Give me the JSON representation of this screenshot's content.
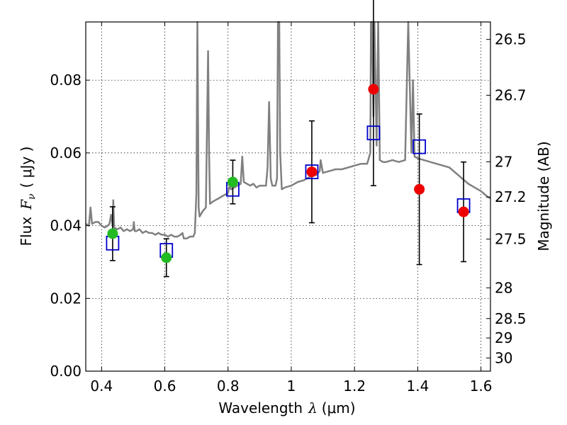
{
  "chart_data": {
    "type": "scatter",
    "xlabel": {
      "prefix": "Wavelength",
      "symbol": "λ",
      "unit": "(μm)"
    },
    "ylabel": {
      "prefix": "Flux",
      "symbol": "F",
      "subscript": "ν",
      "unit": "( μJy )"
    },
    "y2label": "Magnitude (AB)",
    "xlim": [
      0.35,
      1.63
    ],
    "ylim": [
      0.0,
      0.096
    ],
    "grid": true,
    "x_ticks": [
      0.4,
      0.6,
      0.8,
      1.0,
      1.2,
      1.4,
      1.6
    ],
    "x_tick_labels": [
      "0.4",
      "0.6",
      "0.8",
      "1",
      "1.2",
      "1.4",
      "1.6"
    ],
    "y_ticks": [
      0.0,
      0.02,
      0.04,
      0.06,
      0.08
    ],
    "y_tick_labels": [
      "0.00",
      "0.02",
      "0.04",
      "0.06",
      "0.08"
    ],
    "mag_ticks": [
      26.5,
      26.7,
      27,
      27.2,
      27.5,
      28,
      28.5,
      29,
      30
    ],
    "mag_tick_labels": [
      "26.5",
      "26.7",
      "27",
      "27.2",
      "27.5",
      "28",
      "28.5",
      "29",
      "30"
    ],
    "colors": {
      "model_spectrum": "#808080",
      "model_photometry": "#0000cc",
      "observed_green": "#22bb22",
      "observed_red": "#ee0000",
      "error_bar": "#000000"
    },
    "model_spectrum": {
      "x": [
        0.35,
        0.36,
        0.365,
        0.37,
        0.38,
        0.39,
        0.4,
        0.41,
        0.42,
        0.425,
        0.43,
        0.435,
        0.437,
        0.44,
        0.45,
        0.46,
        0.47,
        0.48,
        0.49,
        0.5,
        0.502,
        0.505,
        0.51,
        0.52,
        0.53,
        0.54,
        0.55,
        0.56,
        0.57,
        0.58,
        0.59,
        0.6,
        0.61,
        0.62,
        0.63,
        0.64,
        0.65,
        0.656,
        0.66,
        0.67,
        0.68,
        0.69,
        0.695,
        0.7,
        0.703,
        0.705,
        0.707,
        0.71,
        0.72,
        0.73,
        0.737,
        0.74,
        0.743,
        0.75,
        0.76,
        0.77,
        0.78,
        0.79,
        0.8,
        0.805,
        0.81,
        0.82,
        0.83,
        0.84,
        0.845,
        0.85,
        0.86,
        0.87,
        0.88,
        0.89,
        0.9,
        0.91,
        0.92,
        0.925,
        0.93,
        0.935,
        0.94,
        0.95,
        0.955,
        0.958,
        0.962,
        0.965,
        0.97,
        0.98,
        1.0,
        1.02,
        1.04,
        1.06,
        1.08,
        1.09,
        1.093,
        1.1,
        1.12,
        1.14,
        1.16,
        1.18,
        1.2,
        1.22,
        1.24,
        1.25,
        1.252,
        1.255,
        1.26,
        1.263,
        1.27,
        1.275,
        1.28,
        1.29,
        1.3,
        1.32,
        1.34,
        1.36,
        1.37,
        1.38,
        1.385,
        1.39,
        1.4,
        1.42,
        1.44,
        1.46,
        1.48,
        1.5,
        1.52,
        1.54,
        1.56,
        1.58,
        1.6,
        1.62,
        1.63
      ],
      "y": [
        0.0405,
        0.04,
        0.045,
        0.0405,
        0.041,
        0.041,
        0.04,
        0.0395,
        0.04,
        0.0405,
        0.043,
        0.04,
        0.047,
        0.0395,
        0.039,
        0.0395,
        0.0385,
        0.039,
        0.0385,
        0.039,
        0.041,
        0.0385,
        0.0385,
        0.039,
        0.038,
        0.0385,
        0.038,
        0.038,
        0.0375,
        0.038,
        0.0375,
        0.0375,
        0.037,
        0.0375,
        0.037,
        0.037,
        0.0375,
        0.038,
        0.0365,
        0.0365,
        0.037,
        0.037,
        0.038,
        0.049,
        0.096,
        0.07,
        0.045,
        0.0425,
        0.044,
        0.045,
        0.088,
        0.06,
        0.046,
        0.0465,
        0.047,
        0.0475,
        0.048,
        0.0485,
        0.049,
        0.051,
        0.05,
        0.0505,
        0.051,
        0.0515,
        0.059,
        0.052,
        0.0515,
        0.051,
        0.0515,
        0.0505,
        0.051,
        0.051,
        0.051,
        0.056,
        0.074,
        0.053,
        0.051,
        0.051,
        0.053,
        0.096,
        0.096,
        0.06,
        0.05,
        0.0505,
        0.051,
        0.052,
        0.0525,
        0.0535,
        0.054,
        0.055,
        0.058,
        0.0545,
        0.055,
        0.0555,
        0.0555,
        0.056,
        0.0565,
        0.057,
        0.057,
        0.06,
        0.096,
        0.096,
        0.07,
        0.096,
        0.062,
        0.096,
        0.058,
        0.0575,
        0.0575,
        0.058,
        0.0575,
        0.058,
        0.096,
        0.06,
        0.08,
        0.059,
        0.0585,
        0.058,
        0.0575,
        0.057,
        0.0565,
        0.056,
        0.0545,
        0.053,
        0.0515,
        0.0505,
        0.0495,
        0.048,
        0.0475
      ]
    },
    "model_photometry": {
      "x": [
        0.435,
        0.605,
        0.815,
        1.065,
        1.26,
        1.405,
        1.545
      ],
      "y": [
        0.0352,
        0.0332,
        0.05,
        0.0548,
        0.0655,
        0.0617,
        0.0455
      ]
    },
    "observed": [
      {
        "x": 0.435,
        "y": 0.0378,
        "yerr": 0.0074,
        "color": "green"
      },
      {
        "x": 0.605,
        "y": 0.0312,
        "yerr": 0.0052,
        "color": "green"
      },
      {
        "x": 0.815,
        "y": 0.052,
        "yerr": 0.006,
        "color": "green"
      },
      {
        "x": 1.065,
        "y": 0.0548,
        "yerr": 0.014,
        "color": "red"
      },
      {
        "x": 1.26,
        "y": 0.0775,
        "yerr": 0.0265,
        "color": "red"
      },
      {
        "x": 1.405,
        "y": 0.05,
        "yerr": 0.0207,
        "color": "red"
      },
      {
        "x": 1.545,
        "y": 0.0438,
        "yerr": 0.0137,
        "color": "red"
      }
    ]
  }
}
